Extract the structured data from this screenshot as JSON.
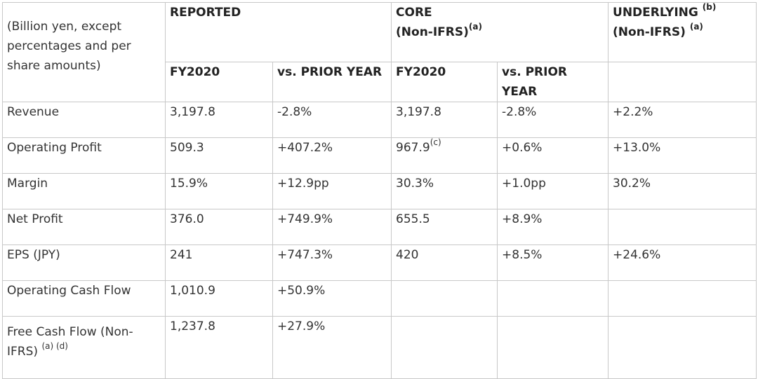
{
  "header": {
    "unit_note": "(Billion yen, except percentages and per share amounts)",
    "reported": "REPORTED",
    "core": "CORE",
    "core_sub": "(Non-IFRS)",
    "core_sub_note": "(a)",
    "underlying": "UNDERLYING",
    "underlying_note": "(b)",
    "underlying_sub": "(Non-IFRS)",
    "underlying_sub_note": "(a)",
    "fy2020": "FY2020",
    "vs_prior": "vs. PRIOR YEAR"
  },
  "rows": [
    {
      "label": "Revenue",
      "rep_fy": "3,197.8",
      "rep_vs": "-2.8%",
      "core_fy": "3,197.8",
      "core_fy_note": "",
      "core_vs": "-2.8%",
      "und": "+2.2%"
    },
    {
      "label": "Operating Profit",
      "rep_fy": "509.3",
      "rep_vs": "+407.2%",
      "core_fy": "967.9",
      "core_fy_note": "(c)",
      "core_vs": "+0.6%",
      "und": "+13.0%"
    },
    {
      "label": "Margin",
      "rep_fy": "15.9%",
      "rep_vs": "+12.9pp",
      "core_fy": "30.3%",
      "core_fy_note": "",
      "core_vs": "+1.0pp",
      "und": "30.2%"
    },
    {
      "label": "Net Profit",
      "rep_fy": "376.0",
      "rep_vs": "+749.9%",
      "core_fy": "655.5",
      "core_fy_note": "",
      "core_vs": "+8.9%",
      "und": ""
    },
    {
      "label": "EPS (JPY)",
      "rep_fy": "241",
      "rep_vs": "+747.3%",
      "core_fy": "420",
      "core_fy_note": "",
      "core_vs": "+8.5%",
      "und": "+24.6%"
    },
    {
      "label": "Operating Cash Flow",
      "rep_fy": "1,010.9",
      "rep_vs": "+50.9%",
      "core_fy": "",
      "core_fy_note": "",
      "core_vs": "",
      "und": ""
    }
  ],
  "last_row": {
    "label": "Free Cash Flow (Non-IFRS)",
    "label_note": "(a) (d)",
    "rep_fy": "1,237.8",
    "rep_vs": "+27.9%"
  }
}
